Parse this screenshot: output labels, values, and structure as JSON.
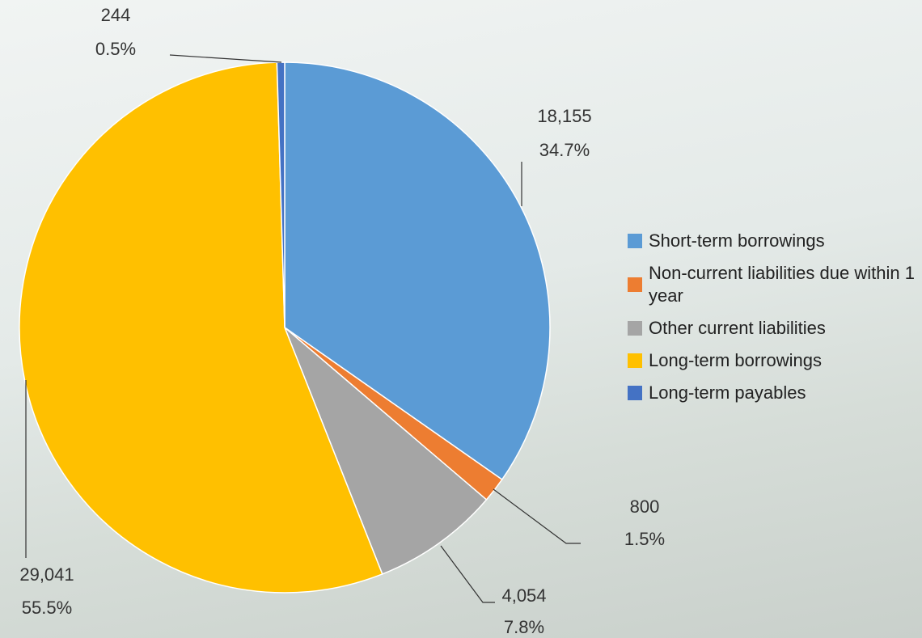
{
  "chart_data": {
    "type": "pie",
    "categories": [
      "Short-term borrowings",
      "Non-current liabilities due within  1 year",
      "Other current liabilities",
      "Long-term borrowings",
      "Long-term payables"
    ],
    "values": [
      18155,
      800,
      4054,
      29041,
      244
    ],
    "value_labels": [
      "18,155",
      "800",
      "4,054",
      "29,041",
      "244"
    ],
    "percents": [
      34.7,
      1.5,
      7.8,
      55.5,
      0.5
    ],
    "percent_labels": [
      "34.7%",
      "1.5%",
      "7.8%",
      "55.5%",
      "0.5%"
    ],
    "colors": [
      "#5b9bd5",
      "#ed7d31",
      "#a5a5a5",
      "#ffc000",
      "#4472c4"
    ],
    "legend": "right"
  }
}
